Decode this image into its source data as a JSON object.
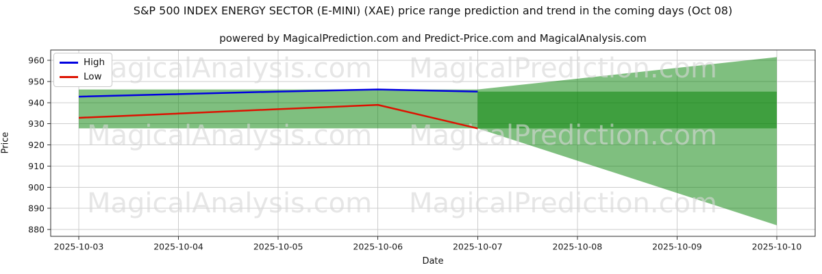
{
  "title": "S&P 500 INDEX ENERGY SECTOR (E-MINI) (XAE) price range prediction and trend in the coming days (Oct 08)",
  "subtitle": "powered by MagicalPrediction.com and Predict-Price.com and MagicalAnalysis.com",
  "axes": {
    "x_label": "Date",
    "y_label": "Price"
  },
  "legend": {
    "items": [
      {
        "label": "High",
        "color": "#0000e0"
      },
      {
        "label": "Low",
        "color": "#dd1100"
      }
    ]
  },
  "watermark": {
    "left_text": "MagicalAnalysis.com",
    "right_text": "MagicalPrediction.com"
  },
  "colors": {
    "band_green": "#008000",
    "band_opacity": 0.5,
    "grid": "#cccccc",
    "frame": "#2a2a2a",
    "tick": "#333333",
    "tick_label": "#1a1a1a",
    "high_line": "#0000e0",
    "low_line": "#dd1100",
    "watermark": "#d6d6d6"
  },
  "chart_data": {
    "type": "line",
    "title": "S&P 500 INDEX ENERGY SECTOR (E-MINI) (XAE) price range prediction and trend in the coming days (Oct 08)",
    "xlabel": "Date",
    "ylabel": "Price",
    "x_dates": [
      "2025-10-03",
      "2025-10-04",
      "2025-10-05",
      "2025-10-06",
      "2025-10-07",
      "2025-10-08",
      "2025-10-09",
      "2025-10-10"
    ],
    "yticks": [
      880,
      890,
      900,
      910,
      920,
      930,
      940,
      950,
      960
    ],
    "ylim": [
      876.8,
      964.9
    ],
    "grid": true,
    "legend_position": "upper left",
    "series": [
      {
        "name": "High",
        "color": "#0000e0",
        "x": [
          "2025-10-03",
          "2025-10-04",
          "2025-10-05",
          "2025-10-06",
          "2025-10-07"
        ],
        "values": [
          942.8,
          944.0,
          945.2,
          946.2,
          945.2
        ]
      },
      {
        "name": "Low",
        "color": "#dd1100",
        "x": [
          "2025-10-03",
          "2025-10-04",
          "2025-10-05",
          "2025-10-06",
          "2025-10-07"
        ],
        "values": [
          932.8,
          934.8,
          936.9,
          938.9,
          927.8
        ]
      }
    ],
    "bands": {
      "history_range": {
        "x_from": "2025-10-03",
        "x_to": "2025-10-07",
        "low": 927.8,
        "high": 946.2
      },
      "forecast_fan": {
        "x_from": "2025-10-07",
        "x_to": "2025-10-10",
        "start_low": 927.8,
        "start_high": 946.2,
        "end_low": 882.0,
        "end_high": 961.5
      },
      "forecast_range": {
        "x_from": "2025-10-07",
        "x_to": "2025-10-10",
        "low": 927.8,
        "high": 945.2
      }
    }
  }
}
